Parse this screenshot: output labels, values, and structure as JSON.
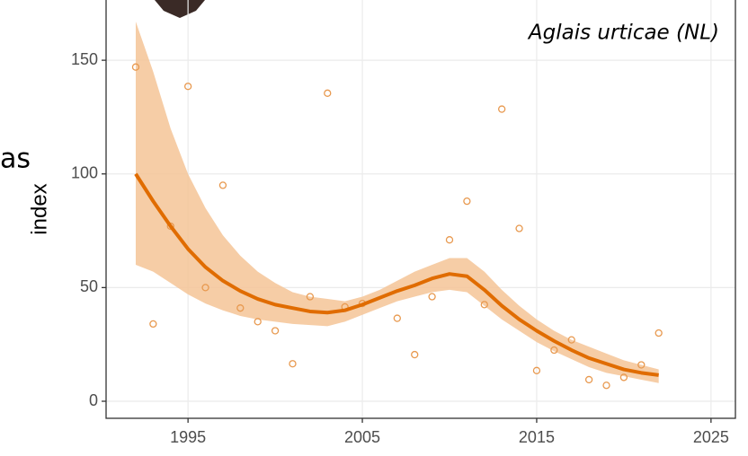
{
  "chart_data": {
    "type": "scatter",
    "title": "Aglais urticae (NL)",
    "ylabel": "index",
    "annotation": "as",
    "x": [
      1992,
      1993,
      1994,
      1995,
      1996,
      1997,
      1998,
      1999,
      2000,
      2001,
      2002,
      2003,
      2004,
      2005,
      2006,
      2007,
      2008,
      2009,
      2010,
      2011,
      2012,
      2013,
      2014,
      2015,
      2016,
      2017,
      2018,
      2019,
      2020,
      2021,
      2022
    ],
    "values": [
      147,
      34,
      77,
      138.5,
      50,
      95,
      41,
      35,
      31,
      16.5,
      46,
      135.5,
      41.5,
      43,
      null,
      36.5,
      20.5,
      46,
      71,
      88,
      42.5,
      128.5,
      76,
      13.5,
      22.5,
      27,
      9.5,
      7,
      10.5,
      16,
      30
    ],
    "trend_values": [
      100,
      88,
      77,
      67,
      59,
      53,
      48.5,
      45,
      42.5,
      41,
      39.5,
      39,
      40,
      42.5,
      45.5,
      48.5,
      51,
      54,
      56,
      55,
      49,
      42,
      36,
      31,
      26.5,
      22.5,
      19,
      16.5,
      14,
      12.5,
      11.5
    ],
    "band_upper": [
      167,
      145,
      120,
      100,
      85,
      73,
      64,
      57,
      52,
      48,
      46,
      45,
      44,
      46,
      49,
      53,
      57,
      60,
      63,
      63,
      57,
      49,
      42,
      36,
      31,
      27,
      24,
      21,
      18,
      16,
      14
    ],
    "band_lower": [
      60,
      57,
      52,
      47,
      43,
      40,
      37.5,
      36,
      35,
      34,
      33.5,
      33,
      35,
      38,
      41,
      44,
      46,
      48,
      49,
      48,
      42,
      36,
      31,
      26,
      22,
      18.5,
      15,
      12.5,
      11,
      9.5,
      8
    ],
    "point_color": "#e8994f",
    "line_color": "#e06c00",
    "band_color": "#f5c496",
    "xlim": [
      1990.3,
      2026.4
    ],
    "ylim": [
      -7.5,
      176.5
    ],
    "xticks": [
      1995,
      2005,
      2015,
      2025
    ],
    "yticks": [
      0,
      50,
      100,
      150
    ],
    "grid": true
  }
}
